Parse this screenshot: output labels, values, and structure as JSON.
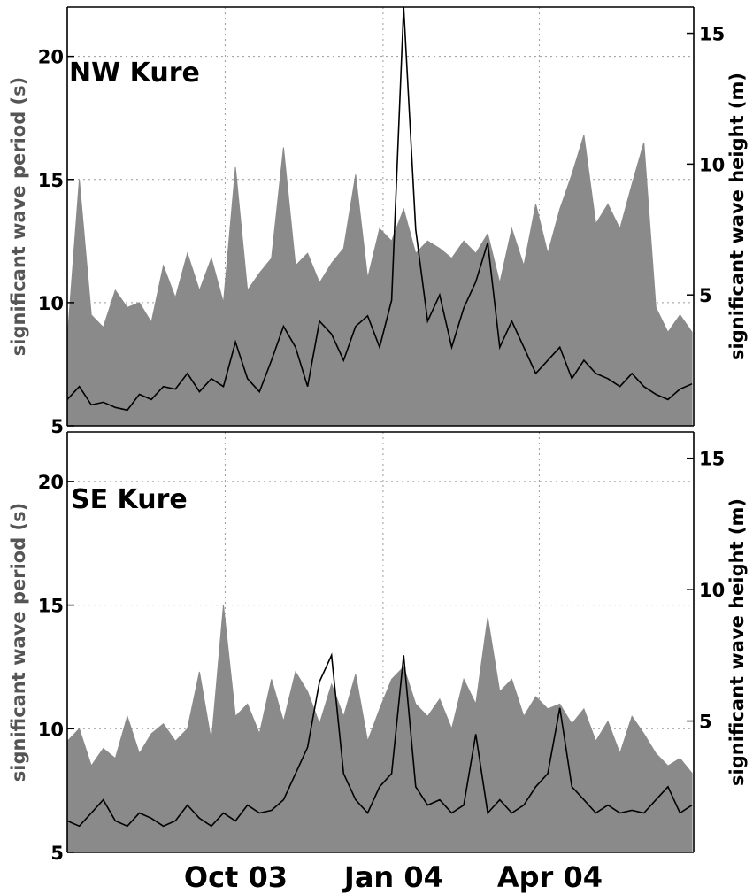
{
  "chart_data": [
    {
      "type": "line",
      "title": "NW Kure",
      "ylabel": "significant wave period (s)",
      "ylabel_right": "significant wave height (m)",
      "ylim": [
        5,
        22
      ],
      "ylim_right": [
        0,
        16
      ],
      "yticks": [
        5,
        10,
        15,
        20
      ],
      "yticks_right": [
        5,
        10,
        15
      ],
      "x_range": [
        "2003-07-01",
        "2004-06-30"
      ],
      "xticks": [
        "Oct 03",
        "Jan 04",
        "Apr 04"
      ],
      "xtick_dates": [
        "2003-10-01",
        "2004-01-01",
        "2004-04-01"
      ],
      "grid": true,
      "series": [
        {
          "axis": "left",
          "color": "#8a8a8a",
          "style": "filled",
          "x": [
            "2003-07-01",
            "2003-07-08",
            "2003-07-15",
            "2003-07-22",
            "2003-07-29",
            "2003-08-05",
            "2003-08-12",
            "2003-08-19",
            "2003-08-26",
            "2003-09-02",
            "2003-09-09",
            "2003-09-16",
            "2003-09-23",
            "2003-09-30",
            "2003-10-07",
            "2003-10-14",
            "2003-10-21",
            "2003-10-28",
            "2003-11-04",
            "2003-11-11",
            "2003-11-18",
            "2003-11-25",
            "2003-12-02",
            "2003-12-09",
            "2003-12-16",
            "2003-12-23",
            "2003-12-30",
            "2004-01-06",
            "2004-01-13",
            "2004-01-20",
            "2004-01-27",
            "2004-02-03",
            "2004-02-10",
            "2004-02-17",
            "2004-02-24",
            "2004-03-02",
            "2004-03-09",
            "2004-03-16",
            "2004-03-23",
            "2004-03-30",
            "2004-04-06",
            "2004-04-13",
            "2004-04-20",
            "2004-04-27",
            "2004-05-04",
            "2004-05-11",
            "2004-05-18",
            "2004-05-25",
            "2004-06-01",
            "2004-06-08",
            "2004-06-15",
            "2004-06-22",
            "2004-06-29"
          ],
          "values": [
            8.5,
            15.0,
            9.5,
            9.0,
            10.5,
            9.8,
            10.0,
            9.2,
            11.5,
            10.2,
            12.0,
            10.5,
            11.8,
            10.0,
            15.5,
            10.5,
            11.2,
            11.8,
            16.3,
            11.5,
            12.0,
            10.8,
            11.6,
            12.2,
            15.2,
            11.0,
            13.0,
            12.5,
            13.8,
            12.0,
            12.5,
            12.2,
            11.8,
            12.5,
            12.0,
            12.8,
            10.8,
            13.0,
            11.5,
            14.0,
            12.0,
            13.8,
            15.2,
            16.8,
            13.2,
            14.0,
            13.0,
            14.8,
            16.5,
            9.8,
            8.8,
            9.5,
            8.8
          ]
        },
        {
          "axis": "right",
          "color": "#000000",
          "style": "line",
          "x": [
            "2003-07-01",
            "2003-07-08",
            "2003-07-15",
            "2003-07-22",
            "2003-07-29",
            "2003-08-05",
            "2003-08-12",
            "2003-08-19",
            "2003-08-26",
            "2003-09-02",
            "2003-09-09",
            "2003-09-16",
            "2003-09-23",
            "2003-09-30",
            "2003-10-07",
            "2003-10-14",
            "2003-10-21",
            "2003-10-28",
            "2003-11-04",
            "2003-11-11",
            "2003-11-18",
            "2003-11-25",
            "2003-12-02",
            "2003-12-09",
            "2003-12-16",
            "2003-12-23",
            "2003-12-30",
            "2004-01-06",
            "2004-01-13",
            "2004-01-20",
            "2004-01-27",
            "2004-02-03",
            "2004-02-10",
            "2004-02-17",
            "2004-02-24",
            "2004-03-02",
            "2004-03-09",
            "2004-03-16",
            "2004-03-23",
            "2004-03-30",
            "2004-04-06",
            "2004-04-13",
            "2004-04-20",
            "2004-04-27",
            "2004-05-04",
            "2004-05-11",
            "2004-05-18",
            "2004-05-25",
            "2004-06-01",
            "2004-06-08",
            "2004-06-15",
            "2004-06-22",
            "2004-06-29"
          ],
          "values": [
            1.0,
            1.5,
            0.8,
            0.9,
            0.7,
            0.6,
            1.2,
            1.0,
            1.5,
            1.4,
            2.0,
            1.3,
            1.8,
            1.5,
            3.2,
            1.8,
            1.3,
            2.5,
            3.8,
            3.0,
            1.5,
            4.0,
            3.5,
            2.5,
            3.8,
            4.2,
            3.0,
            4.8,
            16.0,
            7.5,
            4.0,
            5.0,
            3.0,
            4.5,
            5.5,
            7.0,
            3.0,
            4.0,
            3.0,
            2.0,
            2.5,
            3.0,
            1.8,
            2.5,
            2.0,
            1.8,
            1.5,
            2.0,
            1.5,
            1.2,
            1.0,
            1.4,
            1.6
          ]
        }
      ]
    },
    {
      "type": "line",
      "title": "SE Kure",
      "ylabel": "significant wave period (s)",
      "ylabel_right": "significant wave height (m)",
      "ylim": [
        5,
        22
      ],
      "ylim_right": [
        0,
        16
      ],
      "yticks": [
        5,
        10,
        15,
        20
      ],
      "yticks_right": [
        5,
        10,
        15
      ],
      "x_range": [
        "2003-07-01",
        "2004-06-30"
      ],
      "xticks": [
        "Oct 03",
        "Jan 04",
        "Apr 04"
      ],
      "xtick_dates": [
        "2003-10-01",
        "2004-01-01",
        "2004-04-01"
      ],
      "grid": true,
      "series": [
        {
          "axis": "left",
          "color": "#8a8a8a",
          "style": "filled",
          "x": [
            "2003-07-01",
            "2003-07-08",
            "2003-07-15",
            "2003-07-22",
            "2003-07-29",
            "2003-08-05",
            "2003-08-12",
            "2003-08-19",
            "2003-08-26",
            "2003-09-02",
            "2003-09-09",
            "2003-09-16",
            "2003-09-23",
            "2003-09-30",
            "2003-10-07",
            "2003-10-14",
            "2003-10-21",
            "2003-10-28",
            "2003-11-04",
            "2003-11-11",
            "2003-11-18",
            "2003-11-25",
            "2003-12-02",
            "2003-12-09",
            "2003-12-16",
            "2003-12-23",
            "2003-12-30",
            "2004-01-06",
            "2004-01-13",
            "2004-01-20",
            "2004-01-27",
            "2004-02-03",
            "2004-02-10",
            "2004-02-17",
            "2004-02-24",
            "2004-03-02",
            "2004-03-09",
            "2004-03-16",
            "2004-03-23",
            "2004-03-30",
            "2004-04-06",
            "2004-04-13",
            "2004-04-20",
            "2004-04-27",
            "2004-05-04",
            "2004-05-11",
            "2004-05-18",
            "2004-05-25",
            "2004-06-01",
            "2004-06-08",
            "2004-06-15",
            "2004-06-22",
            "2004-06-29"
          ],
          "values": [
            9.5,
            10.0,
            8.5,
            9.2,
            8.8,
            10.5,
            9.0,
            9.8,
            10.2,
            9.5,
            10.0,
            12.3,
            9.5,
            15.0,
            10.5,
            11.0,
            9.8,
            12.0,
            10.3,
            12.3,
            11.5,
            10.2,
            11.8,
            10.5,
            12.2,
            9.5,
            10.8,
            12.0,
            12.5,
            11.0,
            10.5,
            11.2,
            10.0,
            12.0,
            11.0,
            14.5,
            11.5,
            12.0,
            10.5,
            11.3,
            10.8,
            11.0,
            10.2,
            10.8,
            9.5,
            10.3,
            9.0,
            10.5,
            9.8,
            9.0,
            8.5,
            8.8,
            8.2
          ]
        },
        {
          "axis": "right",
          "color": "#000000",
          "style": "line",
          "x": [
            "2003-07-01",
            "2003-07-08",
            "2003-07-15",
            "2003-07-22",
            "2003-07-29",
            "2003-08-05",
            "2003-08-12",
            "2003-08-19",
            "2003-08-26",
            "2003-09-02",
            "2003-09-09",
            "2003-09-16",
            "2003-09-23",
            "2003-09-30",
            "2003-10-07",
            "2003-10-14",
            "2003-10-21",
            "2003-10-28",
            "2003-11-04",
            "2003-11-11",
            "2003-11-18",
            "2003-11-25",
            "2003-12-02",
            "2003-12-09",
            "2003-12-16",
            "2003-12-23",
            "2003-12-30",
            "2004-01-06",
            "2004-01-13",
            "2004-01-20",
            "2004-01-27",
            "2004-02-03",
            "2004-02-10",
            "2004-02-17",
            "2004-02-24",
            "2004-03-02",
            "2004-03-09",
            "2004-03-16",
            "2004-03-23",
            "2004-03-30",
            "2004-04-06",
            "2004-04-13",
            "2004-04-20",
            "2004-04-27",
            "2004-05-04",
            "2004-05-11",
            "2004-05-18",
            "2004-05-25",
            "2004-06-01",
            "2004-06-08",
            "2004-06-15",
            "2004-06-22",
            "2004-06-29"
          ],
          "values": [
            1.2,
            1.0,
            1.5,
            2.0,
            1.2,
            1.0,
            1.5,
            1.3,
            1.0,
            1.2,
            1.8,
            1.3,
            1.0,
            1.5,
            1.2,
            1.8,
            1.5,
            1.6,
            2.0,
            3.0,
            4.0,
            6.5,
            7.5,
            3.0,
            2.0,
            1.5,
            2.5,
            3.0,
            7.5,
            2.5,
            1.8,
            2.0,
            1.5,
            1.8,
            4.5,
            1.5,
            2.0,
            1.5,
            1.8,
            2.5,
            3.0,
            5.5,
            2.5,
            2.0,
            1.5,
            1.8,
            1.5,
            1.6,
            1.5,
            2.0,
            2.5,
            1.5,
            1.8
          ]
        }
      ]
    }
  ]
}
